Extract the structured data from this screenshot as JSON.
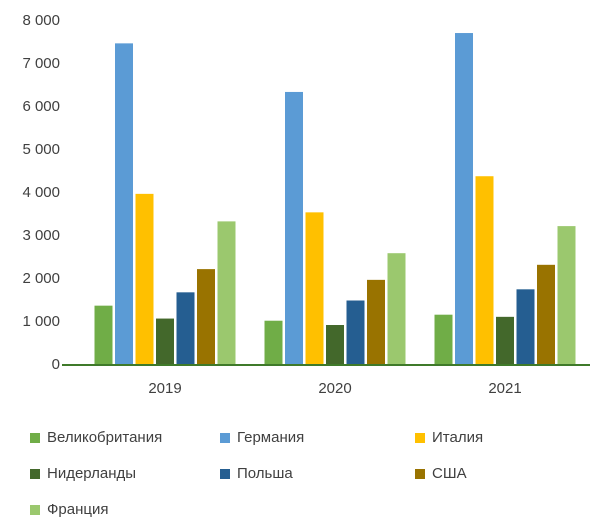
{
  "chart_data": {
    "type": "bar",
    "categories": [
      "2019",
      "2020",
      "2021"
    ],
    "series": [
      {
        "name": "Великобритания",
        "color": "#70ad47",
        "values": [
          1380,
          1030,
          1170
        ]
      },
      {
        "name": "Германия",
        "color": "#5b9bd5",
        "values": [
          7480,
          6350,
          7720
        ]
      },
      {
        "name": "Италия",
        "color": "#ffc000",
        "values": [
          3980,
          3550,
          4390
        ]
      },
      {
        "name": "Нидерланды",
        "color": "#43682b",
        "values": [
          1080,
          930,
          1120
        ]
      },
      {
        "name": "Польша",
        "color": "#255e91",
        "values": [
          1690,
          1500,
          1760
        ]
      },
      {
        "name": "США",
        "color": "#997300",
        "values": [
          2230,
          1980,
          2330
        ]
      },
      {
        "name": "Франция",
        "color": "#9bc86e",
        "values": [
          3340,
          2600,
          3230
        ]
      }
    ],
    "ylim": [
      0,
      8000
    ],
    "yticks": [
      0,
      {
        "value": 1000,
        "label": "1 000"
      },
      {
        "value": 2000,
        "label": "2 000"
      },
      {
        "value": 3000,
        "label": "3 000"
      },
      {
        "value": 4000,
        "label": "4 000"
      },
      {
        "value": 5000,
        "label": "5 000"
      },
      {
        "value": 6000,
        "label": "6 000"
      },
      {
        "value": 7000,
        "label": "7 000"
      },
      {
        "value": 8000,
        "label": "8 000"
      }
    ],
    "grid": false,
    "legend": "bottom"
  }
}
